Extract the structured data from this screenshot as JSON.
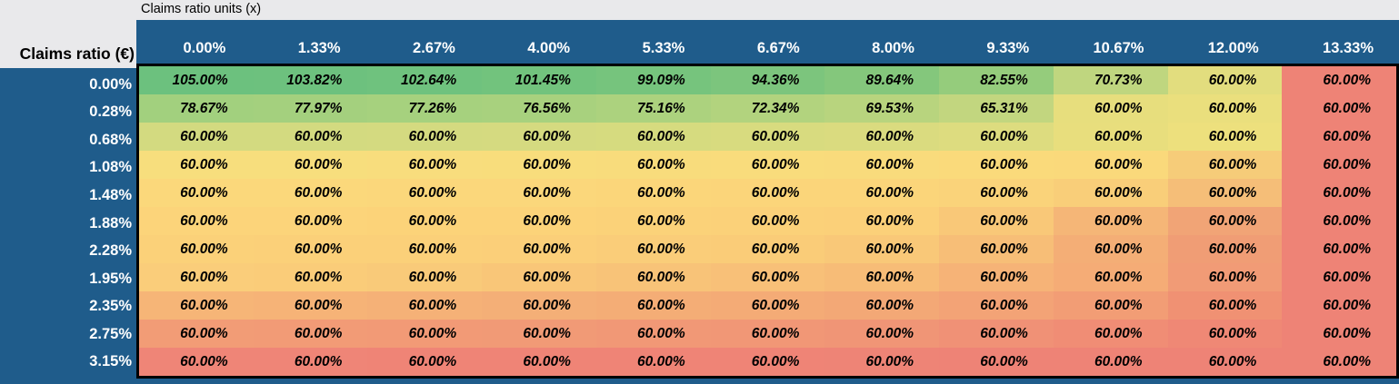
{
  "titles": {
    "axis_top": "Claims ratio units (x)",
    "axis_left": "Claims ratio (€)"
  },
  "colors": {
    "header_blue": "#1F5C8B",
    "page_gray": "#E9E9EB",
    "border_black": "#000000",
    "header_text": "#FFFFFF",
    "cell_text": "#000000"
  },
  "table": {
    "col_headers": [
      "0.00%",
      "1.33%",
      "2.67%",
      "4.00%",
      "5.33%",
      "6.67%",
      "8.00%",
      "9.33%",
      "10.67%",
      "12.00%",
      "13.33%"
    ],
    "rows": [
      {
        "label": "0.00%",
        "values": [
          "105.00%",
          "103.82%",
          "102.64%",
          "101.45%",
          "99.09%",
          "94.36%",
          "89.64%",
          "82.55%",
          "70.73%",
          "60.00%",
          "60.00%"
        ],
        "colors": [
          "#6CC17E",
          "#6DC17E",
          "#6FC27E",
          "#72C37D",
          "#76C47D",
          "#7CC57D",
          "#84C77C",
          "#95CC7C",
          "#BFD67F",
          "#E2DD7E",
          "#EE8376"
        ]
      },
      {
        "label": "0.28%",
        "values": [
          "78.67%",
          "77.97%",
          "77.26%",
          "76.56%",
          "75.16%",
          "72.34%",
          "69.53%",
          "65.31%",
          "60.00%",
          "60.00%",
          "60.00%"
        ],
        "colors": [
          "#A2D07E",
          "#A4D07E",
          "#A6D17E",
          "#A8D17E",
          "#ACD27E",
          "#B2D37E",
          "#B8D47E",
          "#C2D67F",
          "#E7DE7D",
          "#EADF7D",
          "#EE8376"
        ]
      },
      {
        "label": "0.68%",
        "values": [
          "60.00%",
          "60.00%",
          "60.00%",
          "60.00%",
          "60.00%",
          "60.00%",
          "60.00%",
          "60.00%",
          "60.00%",
          "60.00%",
          "60.00%"
        ],
        "colors": [
          "#D3DA80",
          "#D3DA80",
          "#D4DA80",
          "#D5DA80",
          "#D6DB7F",
          "#D8DB7F",
          "#DADB7F",
          "#DDDC7F",
          "#E8DE7D",
          "#EDE07D",
          "#EE8376"
        ]
      },
      {
        "label": "1.08%",
        "values": [
          "60.00%",
          "60.00%",
          "60.00%",
          "60.00%",
          "60.00%",
          "60.00%",
          "60.00%",
          "60.00%",
          "60.00%",
          "60.00%",
          "60.00%"
        ],
        "colors": [
          "#F7DE7D",
          "#F7DE7D",
          "#F8DD7D",
          "#F8DD7C",
          "#F8DC7C",
          "#F9DC7C",
          "#F9DB7C",
          "#FADA7B",
          "#FAD97B",
          "#F6CC79",
          "#EE8376"
        ]
      },
      {
        "label": "1.48%",
        "values": [
          "60.00%",
          "60.00%",
          "60.00%",
          "60.00%",
          "60.00%",
          "60.00%",
          "60.00%",
          "60.00%",
          "60.00%",
          "60.00%",
          "60.00%"
        ],
        "colors": [
          "#FBD87B",
          "#FBD87B",
          "#FBD77B",
          "#FBD77B",
          "#FBD67A",
          "#FBD57A",
          "#FBD57A",
          "#FAD37A",
          "#F9CE79",
          "#F5BE78",
          "#EE8376"
        ]
      },
      {
        "label": "1.88%",
        "values": [
          "60.00%",
          "60.00%",
          "60.00%",
          "60.00%",
          "60.00%",
          "60.00%",
          "60.00%",
          "60.00%",
          "60.00%",
          "60.00%",
          "60.00%"
        ],
        "colors": [
          "#FCD47A",
          "#FCD47A",
          "#FCD379",
          "#FCD379",
          "#FBD279",
          "#FBD179",
          "#FBD079",
          "#F9C878",
          "#F5B677",
          "#F1A476",
          "#EE8376"
        ]
      },
      {
        "label": "2.28%",
        "values": [
          "60.00%",
          "60.00%",
          "60.00%",
          "60.00%",
          "60.00%",
          "60.00%",
          "60.00%",
          "60.00%",
          "60.00%",
          "60.00%",
          "60.00%"
        ],
        "colors": [
          "#FBD179",
          "#FBD079",
          "#FBD079",
          "#FBCF79",
          "#FACD79",
          "#FACC78",
          "#F9C878",
          "#F7BE77",
          "#F4AE76",
          "#F09D75",
          "#EE8376"
        ]
      },
      {
        "label": "1.95%",
        "values": [
          "60.00%",
          "60.00%",
          "60.00%",
          "60.00%",
          "60.00%",
          "60.00%",
          "60.00%",
          "60.00%",
          "60.00%",
          "60.00%",
          "60.00%"
        ],
        "colors": [
          "#FACD7A",
          "#FACC79",
          "#F9CA79",
          "#F9C678",
          "#F8C378",
          "#F8C078",
          "#F7BC77",
          "#F6B377",
          "#F5AC76",
          "#F19B76",
          "#EE8376"
        ]
      },
      {
        "label": "2.35%",
        "values": [
          "60.00%",
          "60.00%",
          "60.00%",
          "60.00%",
          "60.00%",
          "60.00%",
          "60.00%",
          "60.00%",
          "60.00%",
          "60.00%",
          "60.00%"
        ],
        "colors": [
          "#F6B577",
          "#F6B377",
          "#F5B177",
          "#F4AF77",
          "#F4AD76",
          "#F4AB76",
          "#F3A876",
          "#F3A376",
          "#F29D75",
          "#F09173",
          "#EE8376"
        ]
      },
      {
        "label": "2.75%",
        "values": [
          "60.00%",
          "60.00%",
          "60.00%",
          "60.00%",
          "60.00%",
          "60.00%",
          "60.00%",
          "60.00%",
          "60.00%",
          "60.00%",
          "60.00%"
        ],
        "colors": [
          "#F29C76",
          "#F29B76",
          "#F29A76",
          "#F19A76",
          "#F19876",
          "#F19776",
          "#F09576",
          "#F09176",
          "#F08D75",
          "#EF8875",
          "#EE8376"
        ]
      },
      {
        "label": "3.15%",
        "values": [
          "60.00%",
          "60.00%",
          "60.00%",
          "60.00%",
          "60.00%",
          "60.00%",
          "60.00%",
          "60.00%",
          "60.00%",
          "60.00%",
          "60.00%"
        ],
        "colors": [
          "#EF8577",
          "#EF8577",
          "#EF8476",
          "#EF8476",
          "#EF8476",
          "#EF8476",
          "#EE8476",
          "#EE8376",
          "#EE8376",
          "#EE8376",
          "#EE8376"
        ]
      }
    ]
  }
}
